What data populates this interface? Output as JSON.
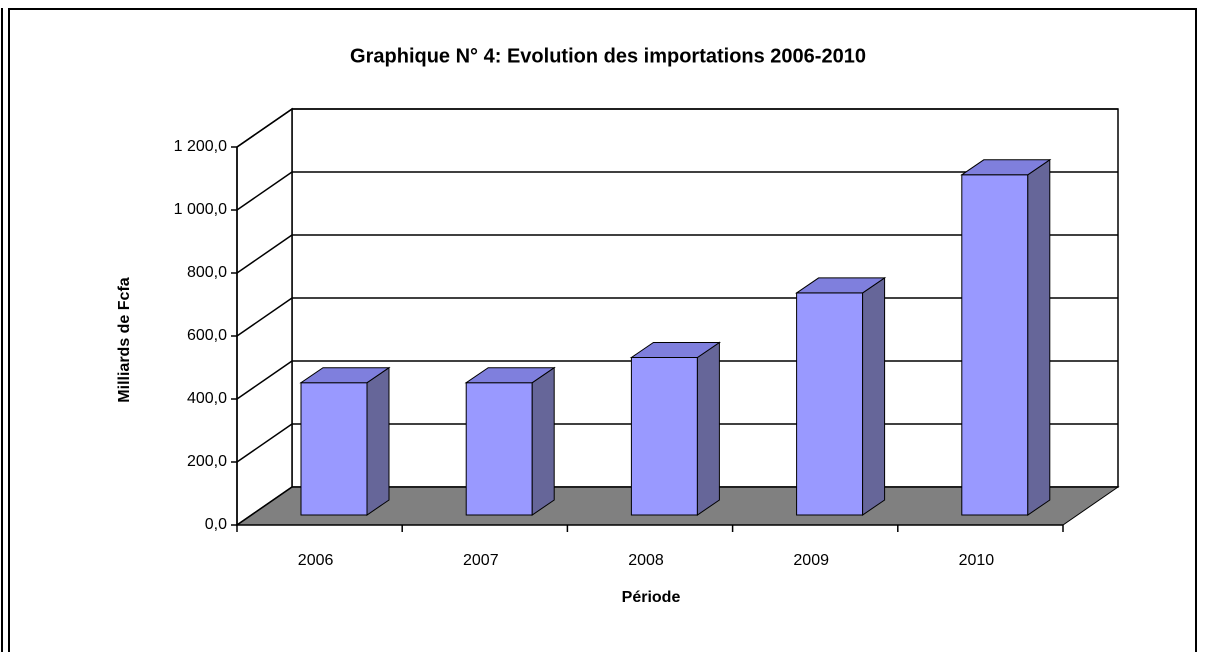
{
  "chart_data": {
    "type": "bar3d",
    "title": "Graphique N° 4: Evolution des importations 2006-2010",
    "x_label": "Période",
    "y_label": "Milliards de Fcfa",
    "categories": [
      "2006",
      "2007",
      "2008",
      "2009",
      "2010"
    ],
    "values": [
      420,
      420,
      500,
      705,
      1080
    ],
    "color": "#9999ff",
    "ylim": [
      0,
      1200
    ],
    "yticks": [
      {
        "value": 0,
        "label": "0,0"
      },
      {
        "value": 200,
        "label": "200,0"
      },
      {
        "value": 400,
        "label": "400,0"
      },
      {
        "value": 600,
        "label": "600,0"
      },
      {
        "value": 800,
        "label": "800,0"
      },
      {
        "value": 1000,
        "label": "1 000,0"
      },
      {
        "value": 1200,
        "label": "1 200,0"
      }
    ],
    "grid": true
  }
}
